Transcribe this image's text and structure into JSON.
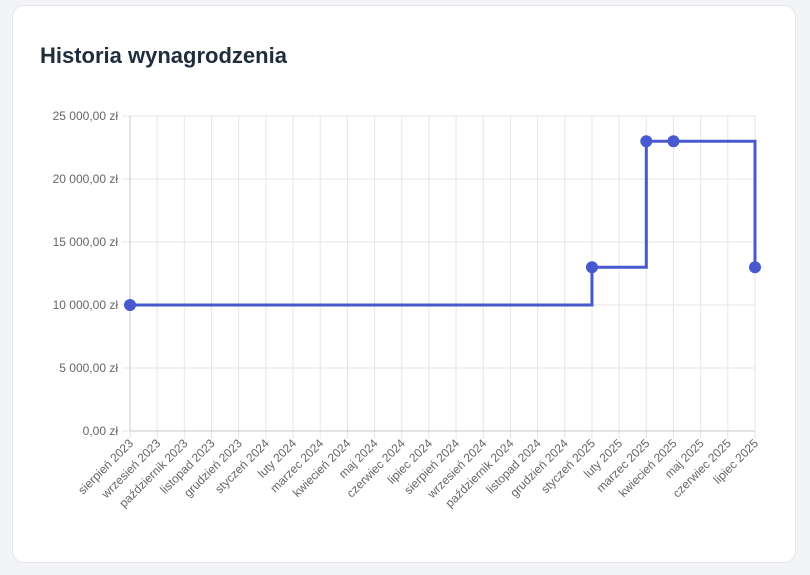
{
  "card": {
    "title": "Historia wynagrodzenia"
  },
  "chart_data": {
    "type": "line",
    "step": "after",
    "title": "Historia wynagrodzenia",
    "xlabel": "",
    "ylabel": "",
    "categories": [
      "sierpień 2023",
      "wrzesień 2023",
      "październik 2023",
      "listopad 2023",
      "grudzień 2023",
      "styczeń 2024",
      "luty 2024",
      "marzec 2024",
      "kwiecień 2024",
      "maj 2024",
      "czerwiec 2024",
      "lipiec 2024",
      "sierpień 2024",
      "wrzesień 2024",
      "październik 2024",
      "listopad 2024",
      "grudzień 2024",
      "styczeń 2025",
      "luty 2025",
      "marzec 2025",
      "kwiecień 2025",
      "maj 2025",
      "czerwiec 2025",
      "lipiec 2025"
    ],
    "points": [
      {
        "x": "sierpień 2023",
        "y": 10000
      },
      {
        "x": "styczeń 2025",
        "y": 13000
      },
      {
        "x": "marzec 2025",
        "y": 23000
      },
      {
        "x": "kwiecień 2025",
        "y": 23000
      },
      {
        "x": "lipiec 2025",
        "y": 13000
      }
    ],
    "ylim": [
      0,
      25000
    ],
    "yticks": [
      {
        "value": 0,
        "label": "0,00 zł"
      },
      {
        "value": 5000,
        "label": "5 000,00 zł"
      },
      {
        "value": 10000,
        "label": "10 000,00 zł"
      },
      {
        "value": 15000,
        "label": "15 000,00 zł"
      },
      {
        "value": 20000,
        "label": "20 000,00 zł"
      },
      {
        "value": 25000,
        "label": "25 000,00 zł"
      }
    ],
    "grid": true,
    "legend": "none",
    "colors": {
      "line": "#4858cf",
      "grid": "#e6e6e6",
      "axis": "#c8c8c8",
      "tick_text": "#666666"
    }
  }
}
